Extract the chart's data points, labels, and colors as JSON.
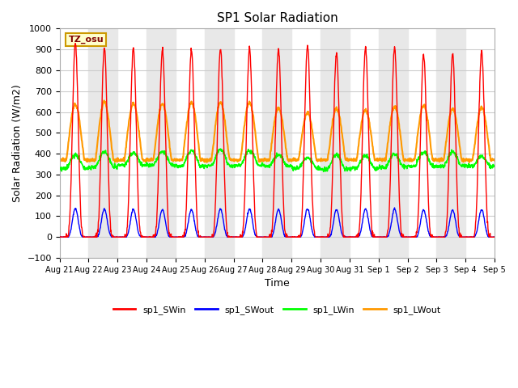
{
  "title": "SP1 Solar Radiation",
  "xlabel": "Time",
  "ylabel": "Solar Radiation (W/m2)",
  "ylim": [
    -100,
    1000
  ],
  "annotation": "TZ_osu",
  "annotation_color": "#800000",
  "annotation_bg": "#ffffcc",
  "annotation_border": "#cc9900",
  "series_colors": {
    "sp1_SWin": "#ff0000",
    "sp1_SWout": "#0000ff",
    "sp1_LWin": "#00ff00",
    "sp1_LWout": "#ff9900"
  },
  "n_days": 15,
  "sw_peaks": [
    930,
    905,
    908,
    898,
    900,
    900,
    905,
    898,
    920,
    880,
    908,
    908,
    875,
    875,
    893
  ],
  "lw_peaks": [
    635,
    645,
    640,
    638,
    645,
    645,
    645,
    620,
    595,
    615,
    608,
    625,
    630,
    615,
    620
  ],
  "lw_night": [
    370,
    370,
    370,
    370,
    370,
    370,
    370,
    370,
    370,
    370,
    370,
    370,
    370,
    370,
    370
  ],
  "lw_in_day": [
    395,
    410,
    405,
    410,
    415,
    420,
    415,
    395,
    380,
    395,
    390,
    395,
    407,
    410,
    385
  ],
  "lw_in_night": [
    330,
    335,
    345,
    345,
    340,
    340,
    345,
    340,
    330,
    325,
    330,
    335,
    340,
    340,
    340
  ],
  "sw_out_peak": 140,
  "sunrise_hour": 5.5,
  "sunset_hour": 20.5,
  "solar_noon": 13.0
}
